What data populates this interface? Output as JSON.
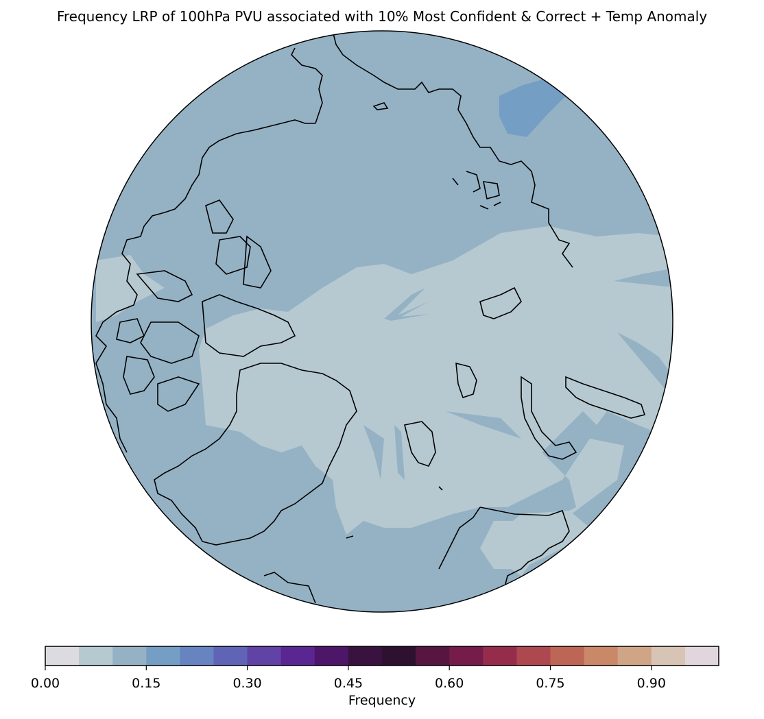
{
  "title": "Frequency LRP of 100hPa PVU associated with 10% Most Confident & Correct + Temp Anomaly",
  "map": {
    "projection": "north-polar-stereographic",
    "variable": "Frequency",
    "colors": {
      "background_region": "#95b2c5",
      "low_region": "#b6c9d0",
      "high_patch": "#749ec4",
      "coastline": "#000000"
    }
  },
  "colorbar": {
    "label": "Frequency",
    "range": [
      0,
      1
    ],
    "step": 0.05,
    "tick_values": [
      0.0,
      0.15,
      0.3,
      0.45,
      0.6,
      0.75,
      0.9
    ],
    "tick_labels": [
      "0.00",
      "0.15",
      "0.30",
      "0.45",
      "0.60",
      "0.75",
      "0.90"
    ],
    "colors": [
      "#dcdbe0",
      "#b6c9d0",
      "#95b2c5",
      "#749ec4",
      "#6784c0",
      "#6064b6",
      "#6043a4",
      "#5a2792",
      "#4d1668",
      "#391240",
      "#2e102f",
      "#561640",
      "#751c4a",
      "#952c4c",
      "#ad4850",
      "#bd6656",
      "#c98868",
      "#d0a587",
      "#d8c4b5",
      "#e0d6db"
    ]
  }
}
